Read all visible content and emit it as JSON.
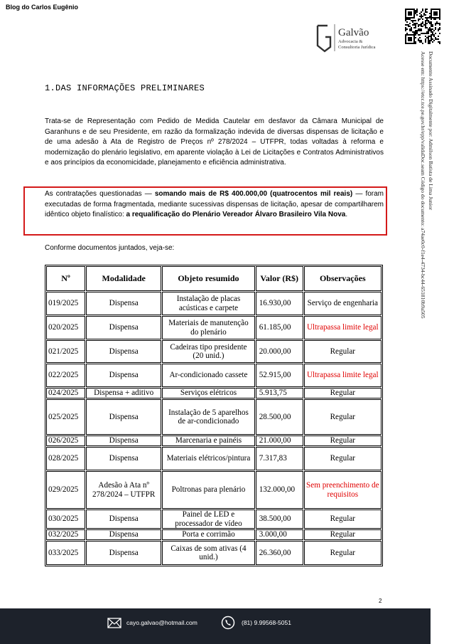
{
  "blog": "Blog do Carlos Eugênio",
  "logo": {
    "name": "Galvão",
    "line1": "Advocacia &",
    "line2": "Consultoria Jurídica"
  },
  "signature": {
    "line1": "Documento Assinado Digitalmente por: Admilson Batista de Lima Junior",
    "line2": "Acesse em: https://etcc.tce.pe.gov.br/epp/validaDoc.seam Código do documento: a74ae0c0-f1e4-4734-bc44-651810b9a505"
  },
  "heading": "1.DAS INFORMAÇÕES PRELIMINARES",
  "paragraph1": "Trata-se de Representação com Pedido de Medida Cautelar em desfavor da Câmara Municipal de Garanhuns e de seu Presidente, em razão da formalização indevida de diversas dispensas de licitação e de uma adesão à Ata de Registro de Preços nº 278/2024 – UTFPR, todas voltadas à reforma e modernização do plenário legislativo, em aparente violação à Lei de Licitações e Contratos Administrativos e aos princípios da economicidade, planejamento e eficiência administrativa.",
  "paragraph2": [
    {
      "text": "As contratações questionadas — ",
      "bold": false
    },
    {
      "text": "somando mais de R$ 400.000,00 (quatrocentos mil reais)",
      "bold": true
    },
    {
      "text": " — foram executadas de forma fragmentada, mediante sucessivas dispensas de licitação, apesar de compartilharem idêntico objeto finalístico: ",
      "bold": false
    },
    {
      "text": "a requalificação do Plenário Vereador Álvaro Brasileiro Vila Nova",
      "bold": true
    },
    {
      "text": ".",
      "bold": false
    }
  ],
  "intro_table": "Conforme documentos juntados, veja-se:",
  "table": {
    "header": [
      "Nº",
      "Modalidade",
      "Objeto resumido",
      "Valor (R$)",
      "Observações"
    ],
    "rows": [
      {
        "cells": [
          "019/2025",
          "Dispensa",
          "Instalação de placas acústicas e carpete",
          "16.930,00",
          "Serviço de engenharia"
        ]
      },
      {
        "cells": [
          "020/2025",
          "Dispensa",
          "Materiais de manutenção do plenário",
          "61.185,00",
          "Ultrapassa limite legal"
        ],
        "observation_color": "#e00000"
      },
      {
        "cells": [
          "021/2025",
          "Dispensa",
          "Cadeiras tipo presidente (20 unid.)",
          "20.000,00",
          "Regular"
        ]
      },
      {
        "cells": [
          "022/2025",
          "Dispensa",
          "Ar-condicionado cassete",
          "52.915,00",
          "Ultrapassa limite legal"
        ],
        "observation_color": "#e00000"
      },
      {
        "cells": [
          "024/2025",
          "Dispensa + aditivo",
          "Serviços elétricos",
          "5.913,75",
          "Regular"
        ]
      },
      {
        "cells": [
          "025/2025",
          "Dispensa",
          "Instalação de 5 aparelhos de ar-condicionado",
          "28.500,00",
          "Regular"
        ]
      },
      {
        "cells": [
          "026/2025",
          "Dispensa",
          "Marcenaria e painéis",
          "21.000,00",
          "Regular"
        ]
      },
      {
        "cells": [
          "028/2025",
          "Dispensa",
          "Materiais elétricos/pintura",
          "7.317,83",
          "Regular"
        ]
      },
      {
        "cells": [
          "029/2025",
          "Adesão à Ata nº 278/2024 – UTFPR",
          "Poltronas para plenário",
          "132.000,00",
          "Sem preenchimento de requisitos"
        ],
        "observation_color": "#e00000"
      },
      {
        "cells": [
          "030/2025",
          "Dispensa",
          "Painel de LED e processador de vídeo",
          "38.500,00",
          "Regular"
        ]
      },
      {
        "cells": [
          "032/2025",
          "Dispensa",
          "Porta e corrimão",
          "3.000,00",
          "Regular"
        ]
      },
      {
        "cells": [
          "033/2025",
          "Dispensa",
          "Caixas de som ativas (4 unid.)",
          "26.360,00",
          "Regular"
        ]
      }
    ]
  },
  "page_number": "2",
  "footer": {
    "email": "cayo.galvao@hotmail.com",
    "phone": "(81) 9.99568-5051"
  }
}
